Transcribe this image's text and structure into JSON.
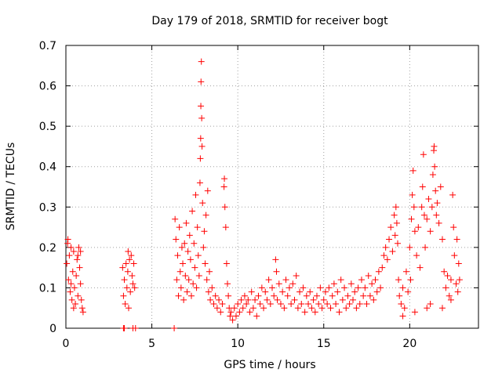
{
  "chart_data": {
    "type": "scatter",
    "title": "Day 179 of 2018, SRMTID for receiver bogt",
    "xlabel": "GPS time / hours",
    "ylabel": "SRMTID / TECUs",
    "xlim": [
      0,
      24
    ],
    "ylim": [
      0,
      0.7
    ],
    "xticks": [
      0,
      5,
      10,
      15,
      20
    ],
    "yticks": [
      0,
      0.1,
      0.2,
      0.3,
      0.4,
      0.5,
      0.6,
      0.7
    ],
    "xtick_labels": [
      "0",
      "5",
      "10",
      "15",
      "20"
    ],
    "ytick_labels": [
      "0",
      "0.1",
      "0.2",
      "0.3",
      "0.4",
      "0.5",
      "0.6",
      "0.7"
    ],
    "grid": true,
    "marker": "+",
    "color": "#ff0000",
    "series": [
      {
        "name": "SRMTID",
        "points": [
          [
            0.05,
            0.16
          ],
          [
            0.1,
            0.21
          ],
          [
            0.15,
            0.12
          ],
          [
            0.2,
            0.18
          ],
          [
            0.25,
            0.09
          ],
          [
            0.3,
            0.2
          ],
          [
            0.35,
            0.07
          ],
          [
            0.4,
            0.14
          ],
          [
            0.45,
            0.19
          ],
          [
            0.5,
            0.1
          ],
          [
            0.55,
            0.06
          ],
          [
            0.6,
            0.13
          ],
          [
            0.65,
            0.17
          ],
          [
            0.7,
            0.08
          ],
          [
            0.75,
            0.2
          ],
          [
            0.8,
            0.15
          ],
          [
            0.85,
            0.11
          ],
          [
            0.9,
            0.07
          ],
          [
            0.95,
            0.05
          ],
          [
            1.0,
            0.04
          ],
          [
            0.12,
            0.22
          ],
          [
            0.3,
            0.11
          ],
          [
            0.45,
            0.05
          ],
          [
            0.7,
            0.18
          ],
          [
            0.85,
            0.19
          ],
          [
            3.3,
            0.15
          ],
          [
            3.35,
            0.08
          ],
          [
            3.4,
            0.12
          ],
          [
            3.45,
            0.06
          ],
          [
            3.5,
            0.16
          ],
          [
            3.55,
            0.1
          ],
          [
            3.6,
            0.14
          ],
          [
            3.65,
            0.05
          ],
          [
            3.7,
            0.17
          ],
          [
            3.75,
            0.09
          ],
          [
            3.8,
            0.18
          ],
          [
            3.85,
            0.13
          ],
          [
            3.9,
            0.11
          ],
          [
            3.95,
            0.16
          ],
          [
            4.0,
            0.1
          ],
          [
            3.62,
            0.19
          ],
          [
            3.4,
            0.0
          ],
          [
            3.35,
            0.0
          ],
          [
            3.9,
            0.0
          ],
          [
            4.05,
            0.0
          ],
          [
            6.3,
            0.0
          ],
          [
            6.35,
            0.27
          ],
          [
            6.4,
            0.22
          ],
          [
            6.45,
            0.12
          ],
          [
            6.5,
            0.18
          ],
          [
            6.55,
            0.08
          ],
          [
            6.6,
            0.25
          ],
          [
            6.65,
            0.14
          ],
          [
            6.7,
            0.1
          ],
          [
            6.75,
            0.2
          ],
          [
            6.8,
            0.16
          ],
          [
            6.85,
            0.07
          ],
          [
            6.9,
            0.21
          ],
          [
            6.95,
            0.13
          ],
          [
            7.0,
            0.26
          ],
          [
            7.05,
            0.09
          ],
          [
            7.1,
            0.19
          ],
          [
            7.15,
            0.12
          ],
          [
            7.2,
            0.23
          ],
          [
            7.25,
            0.17
          ],
          [
            7.3,
            0.08
          ],
          [
            7.35,
            0.29
          ],
          [
            7.4,
            0.11
          ],
          [
            7.45,
            0.21
          ],
          [
            7.5,
            0.15
          ],
          [
            7.55,
            0.33
          ],
          [
            7.6,
            0.1
          ],
          [
            7.65,
            0.25
          ],
          [
            7.7,
            0.18
          ],
          [
            7.75,
            0.13
          ],
          [
            7.8,
            0.36
          ],
          [
            7.82,
            0.42
          ],
          [
            7.84,
            0.47
          ],
          [
            7.85,
            0.55
          ],
          [
            7.86,
            0.61
          ],
          [
            7.88,
            0.66
          ],
          [
            7.9,
            0.52
          ],
          [
            7.92,
            0.45
          ],
          [
            7.95,
            0.31
          ],
          [
            8.0,
            0.2
          ],
          [
            8.05,
            0.24
          ],
          [
            8.1,
            0.16
          ],
          [
            8.15,
            0.28
          ],
          [
            8.2,
            0.12
          ],
          [
            8.25,
            0.34
          ],
          [
            8.3,
            0.09
          ],
          [
            8.35,
            0.14
          ],
          [
            8.4,
            0.07
          ],
          [
            8.5,
            0.1
          ],
          [
            8.6,
            0.06
          ],
          [
            8.7,
            0.08
          ],
          [
            8.8,
            0.05
          ],
          [
            8.9,
            0.07
          ],
          [
            9.0,
            0.04
          ],
          [
            9.1,
            0.06
          ],
          [
            9.2,
            0.35
          ],
          [
            9.22,
            0.37
          ],
          [
            9.25,
            0.3
          ],
          [
            9.3,
            0.25
          ],
          [
            9.35,
            0.16
          ],
          [
            9.4,
            0.11
          ],
          [
            9.45,
            0.08
          ],
          [
            9.5,
            0.05
          ],
          [
            9.55,
            0.03
          ],
          [
            9.6,
            0.04
          ],
          [
            9.7,
            0.02
          ],
          [
            9.8,
            0.05
          ],
          [
            9.9,
            0.03
          ],
          [
            10.0,
            0.06
          ],
          [
            10.1,
            0.04
          ],
          [
            10.2,
            0.07
          ],
          [
            10.3,
            0.05
          ],
          [
            10.4,
            0.08
          ],
          [
            10.5,
            0.06
          ],
          [
            10.6,
            0.07
          ],
          [
            10.7,
            0.04
          ],
          [
            10.8,
            0.09
          ],
          [
            10.9,
            0.05
          ],
          [
            11.0,
            0.07
          ],
          [
            11.1,
            0.03
          ],
          [
            11.2,
            0.08
          ],
          [
            11.3,
            0.06
          ],
          [
            11.4,
            0.1
          ],
          [
            11.5,
            0.05
          ],
          [
            11.6,
            0.09
          ],
          [
            11.7,
            0.07
          ],
          [
            11.8,
            0.12
          ],
          [
            11.9,
            0.06
          ],
          [
            12.0,
            0.1
          ],
          [
            12.1,
            0.08
          ],
          [
            12.2,
            0.17
          ],
          [
            12.25,
            0.14
          ],
          [
            12.3,
            0.07
          ],
          [
            12.4,
            0.11
          ],
          [
            12.5,
            0.06
          ],
          [
            12.6,
            0.09
          ],
          [
            12.7,
            0.05
          ],
          [
            12.8,
            0.12
          ],
          [
            12.9,
            0.08
          ],
          [
            13.0,
            0.1
          ],
          [
            13.1,
            0.06
          ],
          [
            13.2,
            0.11
          ],
          [
            13.3,
            0.07
          ],
          [
            13.4,
            0.13
          ],
          [
            13.5,
            0.05
          ],
          [
            13.6,
            0.09
          ],
          [
            13.7,
            0.06
          ],
          [
            13.8,
            0.1
          ],
          [
            13.9,
            0.04
          ],
          [
            14.0,
            0.08
          ],
          [
            14.1,
            0.06
          ],
          [
            14.2,
            0.09
          ],
          [
            14.3,
            0.05
          ],
          [
            14.4,
            0.07
          ],
          [
            14.5,
            0.04
          ],
          [
            14.6,
            0.08
          ],
          [
            14.7,
            0.06
          ],
          [
            14.8,
            0.1
          ],
          [
            14.9,
            0.05
          ],
          [
            15.0,
            0.07
          ],
          [
            15.1,
            0.09
          ],
          [
            15.2,
            0.06
          ],
          [
            15.3,
            0.1
          ],
          [
            15.4,
            0.05
          ],
          [
            15.5,
            0.08
          ],
          [
            15.6,
            0.11
          ],
          [
            15.7,
            0.06
          ],
          [
            15.8,
            0.09
          ],
          [
            15.9,
            0.04
          ],
          [
            16.0,
            0.12
          ],
          [
            16.1,
            0.07
          ],
          [
            16.2,
            0.1
          ],
          [
            16.3,
            0.05
          ],
          [
            16.4,
            0.08
          ],
          [
            16.5,
            0.06
          ],
          [
            16.6,
            0.11
          ],
          [
            16.7,
            0.07
          ],
          [
            16.8,
            0.09
          ],
          [
            16.9,
            0.05
          ],
          [
            17.0,
            0.1
          ],
          [
            17.1,
            0.06
          ],
          [
            17.2,
            0.12
          ],
          [
            17.3,
            0.08
          ],
          [
            17.4,
            0.1
          ],
          [
            17.5,
            0.06
          ],
          [
            17.6,
            0.13
          ],
          [
            17.7,
            0.08
          ],
          [
            17.8,
            0.11
          ],
          [
            17.9,
            0.07
          ],
          [
            18.0,
            0.12
          ],
          [
            18.1,
            0.09
          ],
          [
            18.2,
            0.14
          ],
          [
            18.3,
            0.1
          ],
          [
            18.4,
            0.15
          ],
          [
            18.5,
            0.18
          ],
          [
            18.6,
            0.2
          ],
          [
            18.7,
            0.17
          ],
          [
            18.8,
            0.22
          ],
          [
            18.9,
            0.25
          ],
          [
            19.0,
            0.19
          ],
          [
            19.1,
            0.28
          ],
          [
            19.15,
            0.23
          ],
          [
            19.2,
            0.3
          ],
          [
            19.25,
            0.26
          ],
          [
            19.3,
            0.21
          ],
          [
            19.35,
            0.12
          ],
          [
            19.4,
            0.08
          ],
          [
            19.5,
            0.06
          ],
          [
            19.6,
            0.1
          ],
          [
            19.7,
            0.05
          ],
          [
            19.8,
            0.14
          ],
          [
            19.9,
            0.09
          ],
          [
            20.0,
            0.2
          ],
          [
            20.05,
            0.12
          ],
          [
            20.1,
            0.27
          ],
          [
            20.15,
            0.33
          ],
          [
            20.2,
            0.39
          ],
          [
            20.25,
            0.3
          ],
          [
            20.3,
            0.24
          ],
          [
            20.4,
            0.18
          ],
          [
            20.5,
            0.25
          ],
          [
            20.6,
            0.15
          ],
          [
            20.7,
            0.3
          ],
          [
            20.75,
            0.35
          ],
          [
            20.8,
            0.43
          ],
          [
            20.85,
            0.28
          ],
          [
            20.9,
            0.2
          ],
          [
            21.0,
            0.27
          ],
          [
            21.1,
            0.32
          ],
          [
            21.2,
            0.24
          ],
          [
            21.3,
            0.3
          ],
          [
            21.35,
            0.38
          ],
          [
            21.4,
            0.44
          ],
          [
            21.42,
            0.45
          ],
          [
            21.45,
            0.4
          ],
          [
            21.5,
            0.34
          ],
          [
            21.55,
            0.28
          ],
          [
            21.6,
            0.31
          ],
          [
            21.7,
            0.26
          ],
          [
            21.8,
            0.35
          ],
          [
            21.9,
            0.22
          ],
          [
            22.0,
            0.14
          ],
          [
            22.1,
            0.1
          ],
          [
            22.2,
            0.13
          ],
          [
            22.3,
            0.08
          ],
          [
            22.4,
            0.12
          ],
          [
            22.5,
            0.33
          ],
          [
            22.55,
            0.25
          ],
          [
            22.6,
            0.18
          ],
          [
            22.7,
            0.11
          ],
          [
            22.75,
            0.22
          ],
          [
            22.8,
            0.09
          ],
          [
            22.85,
            0.16
          ],
          [
            22.9,
            0.12
          ],
          [
            19.6,
            0.03
          ],
          [
            20.3,
            0.04
          ],
          [
            21.0,
            0.05
          ],
          [
            21.2,
            0.06
          ],
          [
            21.9,
            0.05
          ],
          [
            22.4,
            0.07
          ]
        ]
      }
    ]
  }
}
